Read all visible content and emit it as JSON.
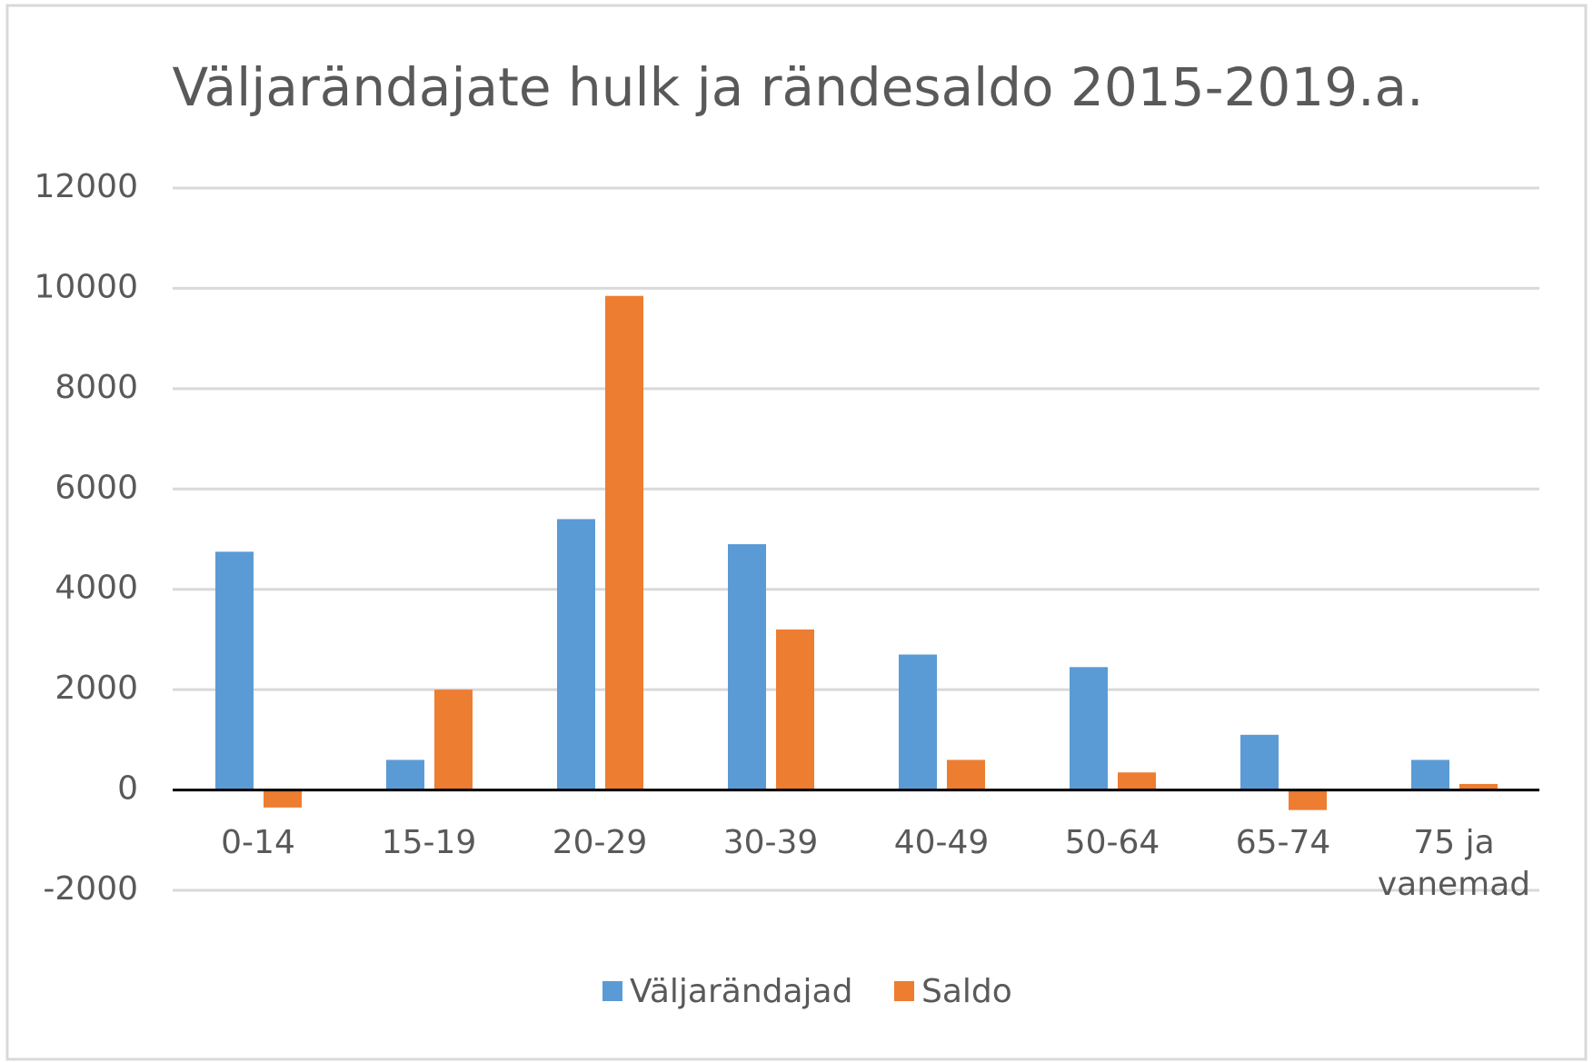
{
  "chart_data": {
    "type": "bar",
    "title": "Väljarändajate hulk ja rändesaldo 2015-2019.a.",
    "categories": [
      "0-14",
      "15-19",
      "20-29",
      "30-39",
      "40-49",
      "50-64",
      "65-74",
      "75 ja vanemad"
    ],
    "series": [
      {
        "name": "Väljarändajad",
        "color": "#5b9bd5",
        "values": [
          4750,
          600,
          5400,
          4900,
          2700,
          2450,
          1100,
          600
        ]
      },
      {
        "name": "Saldo",
        "color": "#ed7d31",
        "values": [
          -350,
          2000,
          9850,
          3200,
          600,
          350,
          -400,
          120
        ]
      }
    ],
    "ylim": [
      -2000,
      12000
    ],
    "yticks": [
      -2000,
      0,
      2000,
      4000,
      6000,
      8000,
      10000,
      12000
    ],
    "grid": true,
    "legend": "bottom"
  }
}
